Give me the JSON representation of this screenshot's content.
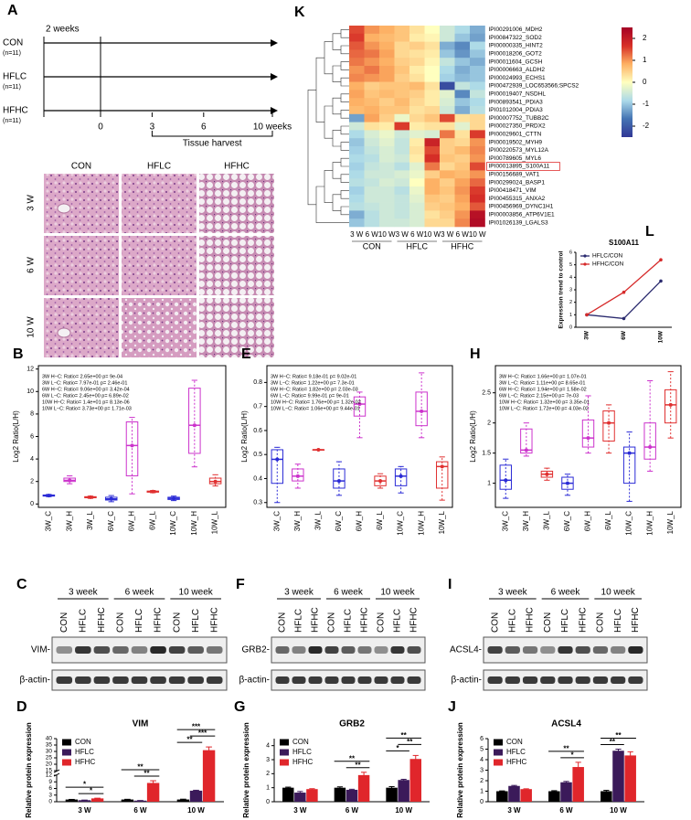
{
  "timeline": {
    "label": "A",
    "start_note": "2 weeks",
    "groups": [
      {
        "name": "CON",
        "n": "(n=11)"
      },
      {
        "name": "HFLC",
        "n": "(n=11)"
      },
      {
        "name": "HFHC",
        "n": "(n=11)"
      }
    ],
    "ticks": [
      0,
      3,
      6,
      {
        "value": 10,
        "label": "10 weeks"
      }
    ],
    "harvest": "Tissue harvest"
  },
  "histology": {
    "columns": [
      "CON",
      "HFLC",
      "HFHC"
    ],
    "rows": [
      "3 W",
      "6 W",
      "10 W"
    ]
  },
  "blots": [
    {
      "label": "C",
      "periods": [
        "3 week",
        "6 week",
        "10 week"
      ],
      "lanes": [
        "CON",
        "HFLC",
        "HFHC",
        "CON",
        "HFLC",
        "HFHC",
        "CON",
        "HFLC",
        "HFHC"
      ],
      "target": "VIM-",
      "loading": "β-actin-"
    },
    {
      "label": "F",
      "periods": [
        "3 week",
        "6 week",
        "10 week"
      ],
      "lanes": [
        "CON",
        "HFLC",
        "HFHC",
        "CON",
        "HFLC",
        "HFHC",
        "CON",
        "HFLC",
        "HFHC"
      ],
      "target": "GRB2-",
      "loading": "β-actin-"
    },
    {
      "label": "I",
      "periods": [
        "3 week",
        "6 week",
        "10 week"
      ],
      "lanes": [
        "CON",
        "HFLC",
        "HFHC",
        "CON",
        "HFLC",
        "HFHC",
        "CON",
        "HFLC",
        "HFHC"
      ],
      "target": "ACSL4-",
      "loading": "β-actin-"
    }
  ],
  "chart_data": [
    {
      "type": "box",
      "label": "B",
      "ylabel": "Log2 Ratio(L/H)",
      "categories": [
        "3W_C",
        "3W_H",
        "3W_L",
        "6W_C",
        "6W_H",
        "6W_L",
        "10W_C",
        "10W_H",
        "10W_L"
      ],
      "colors": [
        "#2b2bd6",
        "#cc33cc",
        "#e03030",
        "#2b2bd6",
        "#cc33cc",
        "#e03030",
        "#2b2bd6",
        "#cc33cc",
        "#e03030"
      ],
      "boxes": [
        {
          "low": 0.65,
          "q1": 0.7,
          "median": 0.75,
          "q3": 0.8,
          "high": 0.85
        },
        {
          "low": 1.8,
          "q1": 2.0,
          "median": 2.1,
          "q3": 2.3,
          "high": 2.5
        },
        {
          "low": 0.5,
          "q1": 0.55,
          "median": 0.6,
          "q3": 0.65,
          "high": 0.7
        },
        {
          "low": 0.2,
          "q1": 0.35,
          "median": 0.45,
          "q3": 0.6,
          "high": 0.75
        },
        {
          "low": 0.9,
          "q1": 2.5,
          "median": 5.2,
          "q3": 7.3,
          "high": 7.7
        },
        {
          "low": 1.0,
          "q1": 1.05,
          "median": 1.1,
          "q3": 1.15,
          "high": 1.2
        },
        {
          "low": 0.3,
          "q1": 0.4,
          "median": 0.5,
          "q3": 0.6,
          "high": 0.7
        },
        {
          "low": 3.3,
          "q1": 4.5,
          "median": 7.0,
          "q3": 10.3,
          "high": 11.0
        },
        {
          "low": 1.6,
          "q1": 1.8,
          "median": 2.0,
          "q3": 2.3,
          "high": 2.6
        }
      ],
      "ylim": [
        -0.3,
        12.3
      ],
      "yticks": [
        0,
        2,
        4,
        6,
        8,
        10,
        12
      ],
      "annotations": [
        "3W H−C: Ratio= 2.65e+00  p= 9e-04",
        "3W L−C: Ratio= 7.97e-01  p= 2.46e-01",
        "6W H−C: Ratio= 9.06e+00  p= 3.42e-04",
        "6W L−C: Ratio= 2.45e+00  p= 6.89e-02",
        "10W H−C: Ratio= 1.4e+01  p= 8.13e-06",
        "10W L−C: Ratio= 3.73e+00  p= 1.71e-03"
      ]
    },
    {
      "type": "box",
      "label": "E",
      "ylabel": "Log2 Ratio(L/H)",
      "categories": [
        "3W_C",
        "3W_H",
        "3W_L",
        "6W_C",
        "6W_H",
        "6W_L",
        "10W_C",
        "10W_H",
        "10W_L"
      ],
      "colors": [
        "#2b2bd6",
        "#cc33cc",
        "#e03030",
        "#2b2bd6",
        "#cc33cc",
        "#e03030",
        "#2b2bd6",
        "#cc33cc",
        "#e03030"
      ],
      "boxes": [
        {
          "low": 0.3,
          "q1": 0.38,
          "median": 0.48,
          "q3": 0.52,
          "high": 0.53
        },
        {
          "low": 0.36,
          "q1": 0.39,
          "median": 0.41,
          "q3": 0.44,
          "high": 0.46
        },
        {
          "low": 0.52,
          "q1": 0.52,
          "median": 0.52,
          "q3": 0.52,
          "high": 0.52
        },
        {
          "low": 0.33,
          "q1": 0.36,
          "median": 0.39,
          "q3": 0.44,
          "high": 0.47
        },
        {
          "low": 0.57,
          "q1": 0.66,
          "median": 0.71,
          "q3": 0.74,
          "high": 0.76
        },
        {
          "low": 0.36,
          "q1": 0.37,
          "median": 0.39,
          "q3": 0.41,
          "high": 0.42
        },
        {
          "low": 0.34,
          "q1": 0.37,
          "median": 0.41,
          "q3": 0.44,
          "high": 0.45
        },
        {
          "low": 0.57,
          "q1": 0.62,
          "median": 0.68,
          "q3": 0.76,
          "high": 0.84
        },
        {
          "low": 0.31,
          "q1": 0.36,
          "median": 0.45,
          "q3": 0.47,
          "high": 0.49
        }
      ],
      "ylim": [
        0.28,
        0.87
      ],
      "yticks": [
        0.3,
        0.4,
        0.5,
        0.6,
        0.7,
        0.8
      ],
      "annotations": [
        "3W H−C: Ratio= 9.18e-01  p= 9.02e-01",
        "3W L−C: Ratio= 1.22e+00  p= 7.3e-01",
        "6W H−C: Ratio= 1.82e+00  p= 2.03e-03",
        "6W L−C: Ratio= 9.99e-01  p= 9e-01",
        "10W H−C: Ratio= 1.76e+00  p= 1.32e-02",
        "10W L−C: Ratio= 1.06e+00  p= 9.44e-01"
      ]
    },
    {
      "type": "box",
      "label": "H",
      "ylabel": "Log2 Ratio(L/H)",
      "categories": [
        "3W_C",
        "3W_H",
        "3W_L",
        "6W_C",
        "6W_H",
        "6W_L",
        "10W_C",
        "10W_H",
        "10W_L"
      ],
      "colors": [
        "#2b2bd6",
        "#cc33cc",
        "#e03030",
        "#2b2bd6",
        "#cc33cc",
        "#e03030",
        "#2b2bd6",
        "#cc33cc",
        "#e03030"
      ],
      "boxes": [
        {
          "low": 0.75,
          "q1": 0.9,
          "median": 1.05,
          "q3": 1.3,
          "high": 1.4
        },
        {
          "low": 1.45,
          "q1": 1.5,
          "median": 1.55,
          "q3": 1.9,
          "high": 2.0
        },
        {
          "low": 1.05,
          "q1": 1.1,
          "median": 1.15,
          "q3": 1.2,
          "high": 1.25
        },
        {
          "low": 0.8,
          "q1": 0.9,
          "median": 1.0,
          "q3": 1.1,
          "high": 1.15
        },
        {
          "low": 1.5,
          "q1": 1.6,
          "median": 1.75,
          "q3": 2.05,
          "high": 2.45
        },
        {
          "low": 1.5,
          "q1": 1.7,
          "median": 2.0,
          "q3": 2.2,
          "high": 2.3
        },
        {
          "low": 0.7,
          "q1": 1.0,
          "median": 1.5,
          "q3": 1.6,
          "high": 1.85
        },
        {
          "low": 1.2,
          "q1": 1.4,
          "median": 1.6,
          "q3": 2.0,
          "high": 2.7
        },
        {
          "low": 1.75,
          "q1": 2.0,
          "median": 2.3,
          "q3": 2.55,
          "high": 2.85
        }
      ],
      "ylim": [
        0.6,
        2.95
      ],
      "yticks": [
        1.0,
        1.5,
        2.0,
        2.5
      ],
      "annotations": [
        "3W H−C: Ratio= 1.66e+00  p= 1.07e-01",
        "3W L−C: Ratio= 1.11e+00  p= 8.65e-01",
        "6W H−C: Ratio= 1.94e+00  p= 1.58e-02",
        "6W L−C: Ratio= 2.15e+00  p= 7e-03",
        "10W H−C: Ratio= 1.32e+00  p= 3.35e-01",
        "10W L−C: Ratio= 1.72e+00  p= 4.03e-02"
      ]
    },
    {
      "type": "bar",
      "label": "D",
      "title": "VIM",
      "ylabel": "Relative protein expression",
      "categories": [
        "3 W",
        "6 W",
        "10 W"
      ],
      "series": [
        {
          "name": "CON",
          "color": "#000000",
          "values": [
            1,
            1,
            1
          ],
          "errors": [
            0.05,
            0.1,
            0.15
          ]
        },
        {
          "name": "HFLC",
          "color": "#3b1a5a",
          "values": [
            0.7,
            0.5,
            5.0
          ],
          "errors": [
            0.05,
            0.05,
            0.2
          ]
        },
        {
          "name": "HFHC",
          "color": "#e0262b",
          "values": [
            1.5,
            8.5,
            31
          ],
          "errors": [
            0.1,
            1.0,
            2.5
          ]
        }
      ],
      "ylim": [
        0,
        40
      ],
      "yticks": [
        0,
        3,
        6,
        9,
        12,
        15,
        20,
        25,
        30,
        35,
        40
      ],
      "axis_break": [
        12,
        15
      ],
      "significance": [
        {
          "category": "3 W",
          "from": "HFLC",
          "to": "HFHC",
          "label": "*"
        },
        {
          "category": "3 W",
          "from": "CON",
          "to": "HFHC",
          "label": "*"
        },
        {
          "category": "6 W",
          "from": "HFLC",
          "to": "HFHC",
          "label": "**"
        },
        {
          "category": "6 W",
          "from": "CON",
          "to": "HFHC",
          "label": "**"
        },
        {
          "category": "10 W",
          "from": "CON",
          "to": "HFLC",
          "label": "**"
        },
        {
          "category": "10 W",
          "from": "HFLC",
          "to": "HFHC",
          "label": "***"
        },
        {
          "category": "10 W",
          "from": "CON",
          "to": "HFHC",
          "label": "***"
        }
      ]
    },
    {
      "type": "bar",
      "label": "G",
      "title": "GRB2",
      "ylabel": "Relative protein expression",
      "categories": [
        "3 W",
        "6 W",
        "10 W"
      ],
      "series": [
        {
          "name": "CON",
          "color": "#000000",
          "values": [
            1,
            1,
            1
          ],
          "errors": [
            0.04,
            0.06,
            0.08
          ]
        },
        {
          "name": "HFLC",
          "color": "#3b1a5a",
          "values": [
            0.65,
            0.85,
            1.55
          ],
          "errors": [
            0.08,
            0.04,
            0.05
          ]
        },
        {
          "name": "HFHC",
          "color": "#e0262b",
          "values": [
            0.9,
            1.9,
            3.05
          ],
          "errors": [
            0.03,
            0.2,
            0.25
          ]
        }
      ],
      "ylim": [
        0,
        4.5
      ],
      "yticks": [
        0,
        1,
        2,
        3,
        4
      ],
      "significance": [
        {
          "category": "6 W",
          "from": "HFLC",
          "to": "HFHC",
          "label": "**"
        },
        {
          "category": "6 W",
          "from": "CON",
          "to": "HFHC",
          "label": "**"
        },
        {
          "category": "10 W",
          "from": "CON",
          "to": "HFLC",
          "label": "*"
        },
        {
          "category": "10 W",
          "from": "HFLC",
          "to": "HFHC",
          "label": "**"
        },
        {
          "category": "10 W",
          "from": "CON",
          "to": "HFHC",
          "label": "**"
        }
      ]
    },
    {
      "type": "bar",
      "label": "J",
      "title": "ACSL4",
      "ylabel": "Relative protein expression",
      "categories": [
        "3 W",
        "6 W",
        "10 W"
      ],
      "series": [
        {
          "name": "CON",
          "color": "#000000",
          "values": [
            1,
            1,
            1
          ],
          "errors": [
            0.03,
            0.05,
            0.08
          ]
        },
        {
          "name": "HFLC",
          "color": "#3b1a5a",
          "values": [
            1.5,
            1.85,
            4.85
          ],
          "errors": [
            0.05,
            0.08,
            0.15
          ]
        },
        {
          "name": "HFHC",
          "color": "#e0262b",
          "values": [
            1.2,
            3.3,
            4.4
          ],
          "errors": [
            0.03,
            0.45,
            0.35
          ]
        }
      ],
      "ylim": [
        0,
        6
      ],
      "yticks": [
        0,
        1,
        2,
        3,
        4,
        5,
        6
      ],
      "significance": [
        {
          "category": "6 W",
          "from": "HFLC",
          "to": "HFHC",
          "label": "*"
        },
        {
          "category": "6 W",
          "from": "CON",
          "to": "HFHC",
          "label": "**"
        },
        {
          "category": "10 W",
          "from": "CON",
          "to": "HFLC",
          "label": "**"
        },
        {
          "category": "10 W",
          "from": "CON",
          "to": "HFHC",
          "label": "**"
        }
      ]
    },
    {
      "type": "heatmap",
      "label": "K",
      "rows": [
        "IPI00291006_MDH2",
        "IPI00847322_SOD2",
        "IPI00000335_HINT2",
        "IPI00018206_GOT2",
        "IPI00011604_GCSH",
        "IPI00006663_ALDH2",
        "IPI00024993_ECHS1",
        "IPI00472939_LOC653566;SPCS2",
        "IPI00019407_NSDHL",
        "IPI00893541_PDIA3",
        "IPI01012004_PDIA3",
        "IPI00007752_TUBB2C",
        "IPI00027350_PRDX2",
        "IPI00029601_CTTN",
        "IPI00019502_MYH9",
        "IPI00220573_MYL12A",
        "IPI00789605_MYL6",
        "IPI00013895_S100A11",
        "IPI00156689_VAT1",
        "IPI00299024_BASP1",
        "IPI00418471_VIM",
        "IPI00455315_ANXA2",
        "IPI00456969_DYNC1H1",
        "IPI00003856_ATP6V1E1",
        "IPI01026139_LGALS3"
      ],
      "columns": [
        "3 W",
        "6 W",
        "10 W",
        "3 W",
        "6 W",
        "10 W",
        "3 W",
        "6 W",
        "10 W"
      ],
      "groups": [
        "CON",
        "HFLC",
        "HFHC"
      ],
      "values": [
        [
          1.5,
          1.0,
          0.8,
          0.6,
          0.3,
          0.0,
          -0.5,
          -0.8,
          -1.2
        ],
        [
          1.6,
          0.8,
          0.7,
          0.6,
          0.2,
          0.1,
          -0.5,
          -1.0,
          -1.3
        ],
        [
          1.4,
          1.0,
          0.8,
          0.4,
          0.5,
          0.3,
          -1.2,
          -1.5,
          -0.8
        ],
        [
          1.3,
          1.2,
          0.9,
          0.4,
          0.3,
          0.2,
          -1.0,
          -1.4,
          -1.0
        ],
        [
          1.2,
          1.0,
          0.8,
          0.5,
          0.4,
          0.1,
          -0.6,
          -1.0,
          -1.2
        ],
        [
          1.0,
          1.2,
          0.9,
          0.6,
          0.2,
          0.0,
          -0.8,
          -1.2,
          -1.0
        ],
        [
          1.1,
          1.0,
          0.9,
          0.5,
          0.3,
          0.0,
          -0.9,
          -1.1,
          -1.0
        ],
        [
          0.8,
          0.5,
          0.6,
          0.6,
          0.7,
          0.3,
          -2.2,
          -0.6,
          -0.8
        ],
        [
          0.9,
          0.6,
          0.7,
          0.6,
          0.5,
          0.2,
          -0.3,
          -1.5,
          -0.6
        ],
        [
          0.8,
          0.7,
          0.5,
          0.7,
          0.4,
          0.2,
          -0.4,
          -1.0,
          -0.8
        ],
        [
          0.7,
          0.8,
          0.6,
          0.6,
          0.3,
          0.4,
          -0.5,
          -1.2,
          -0.7
        ],
        [
          -1.3,
          0.9,
          0.5,
          -0.2,
          0.4,
          0.6,
          1.5,
          0.3,
          0.4
        ],
        [
          -0.5,
          0.3,
          0.2,
          1.6,
          0.2,
          0.3,
          0.3,
          -0.3,
          0.4
        ],
        [
          -0.8,
          -0.4,
          -0.2,
          -0.5,
          -0.3,
          -0.4,
          1.2,
          0.3,
          1.6
        ],
        [
          -1.0,
          -0.5,
          -0.3,
          -0.6,
          0.2,
          1.9,
          0.5,
          0.4,
          1.0
        ],
        [
          -0.9,
          -0.6,
          -0.4,
          -0.6,
          0.3,
          1.5,
          0.5,
          0.7,
          1.1
        ],
        [
          -0.8,
          -0.7,
          -0.4,
          -0.5,
          0.2,
          1.7,
          0.6,
          0.5,
          1.0
        ],
        [
          -0.9,
          -0.6,
          -0.5,
          -0.7,
          -0.3,
          1.2,
          0.4,
          0.6,
          1.5
        ],
        [
          -0.8,
          -0.5,
          -0.5,
          -0.4,
          -0.2,
          0.5,
          0.8,
          0.7,
          1.0
        ],
        [
          -0.7,
          -0.6,
          -0.4,
          -0.5,
          0.0,
          0.8,
          0.5,
          0.9,
          1.3
        ],
        [
          -0.9,
          -0.5,
          -0.5,
          -0.7,
          -0.2,
          0.8,
          0.6,
          1.0,
          1.6
        ],
        [
          -0.8,
          -0.5,
          -0.5,
          -0.6,
          -0.3,
          0.6,
          0.5,
          0.9,
          1.7
        ],
        [
          -0.7,
          -0.6,
          -0.5,
          -0.6,
          -0.4,
          0.5,
          0.6,
          0.8,
          1.4
        ],
        [
          -1.2,
          -0.7,
          -0.5,
          -0.6,
          -0.4,
          0.3,
          0.5,
          1.0,
          2.2
        ],
        [
          -1.0,
          -0.7,
          -0.5,
          -0.5,
          -0.4,
          0.4,
          0.4,
          1.1,
          2.3
        ]
      ],
      "colorbar_lim": [
        -2.5,
        2.5
      ],
      "colorbar_ticks": [
        2,
        1,
        0,
        -1,
        -2
      ],
      "highlight_row": "IPI00013895_S100A11"
    },
    {
      "type": "line",
      "label": "L",
      "title": "S100A11",
      "ylabel": "Expression trend to control",
      "categories": [
        "3W",
        "6W",
        "10W"
      ],
      "series": [
        {
          "name": "HFLC/CON",
          "color": "#2a2a6e",
          "values": [
            1,
            0.7,
            3.7
          ]
        },
        {
          "name": "HFHC/CON",
          "color": "#d62a2a",
          "values": [
            1,
            2.8,
            5.4
          ]
        }
      ],
      "ylim": [
        0,
        6
      ],
      "yticks": [
        0,
        1,
        2,
        3,
        4,
        5,
        6
      ]
    }
  ]
}
